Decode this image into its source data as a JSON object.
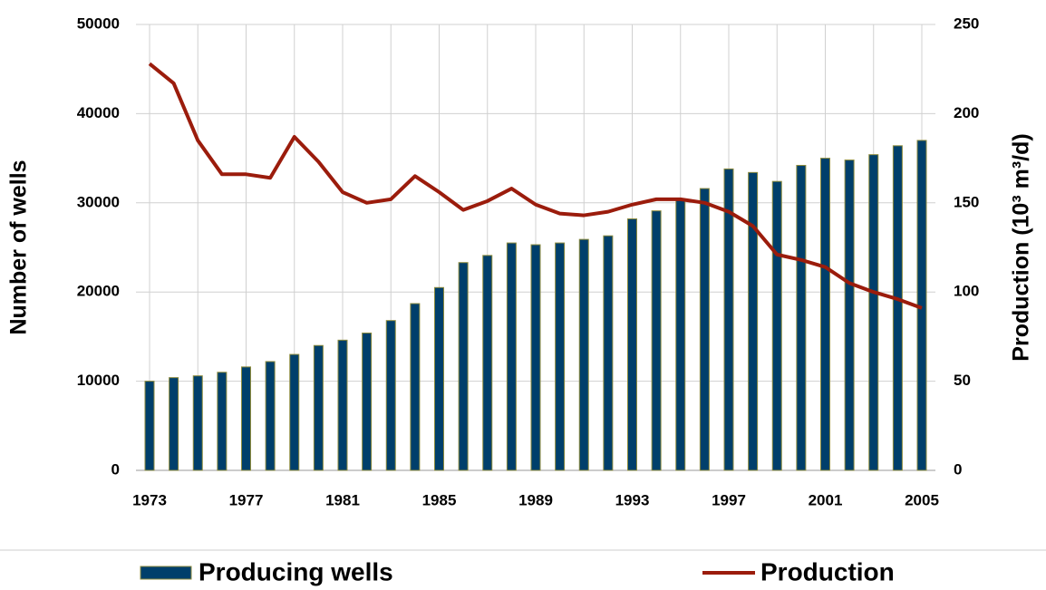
{
  "chart_data": {
    "type": "bar_line",
    "categories": [
      "1973",
      null,
      null,
      null,
      "1977",
      null,
      null,
      null,
      "1981",
      null,
      null,
      null,
      "1985",
      null,
      null,
      null,
      "1989",
      null,
      null,
      null,
      "1993",
      null,
      null,
      null,
      "1997",
      null,
      null,
      null,
      "2001",
      null,
      null,
      null,
      "2005"
    ],
    "series": [
      {
        "name": "Producing wells",
        "type": "bar",
        "color": "#003f6b",
        "axis": "y",
        "values": [
          10000,
          10400,
          10600,
          11000,
          11600,
          12200,
          13000,
          14000,
          14600,
          15400,
          16800,
          18700,
          20500,
          23300,
          24100,
          25500,
          25300,
          25500,
          25900,
          26300,
          28200,
          29100,
          30400,
          31600,
          33800,
          33400,
          32400,
          34200,
          35000,
          34800,
          35400,
          36400,
          37000
        ]
      },
      {
        "name": "Production",
        "type": "line",
        "color": "#9b1c0c",
        "axis": "y2",
        "values": [
          228,
          217,
          185,
          166,
          166,
          164,
          187,
          173,
          156,
          150,
          152,
          165,
          156,
          146,
          151,
          158,
          149,
          144,
          143,
          145,
          149,
          152,
          152,
          150,
          145,
          137,
          121,
          118,
          114,
          105,
          100,
          96,
          91
        ]
      }
    ],
    "ylabel": "Number of wells",
    "y2label": "Production (10³ m³/d)",
    "ylim": [
      0,
      50000
    ],
    "yticks": [
      0,
      10000,
      20000,
      30000,
      40000,
      50000
    ],
    "y2lim": [
      0,
      250
    ],
    "y2ticks": [
      0,
      50,
      100,
      150,
      200,
      250
    ],
    "grid": true
  }
}
